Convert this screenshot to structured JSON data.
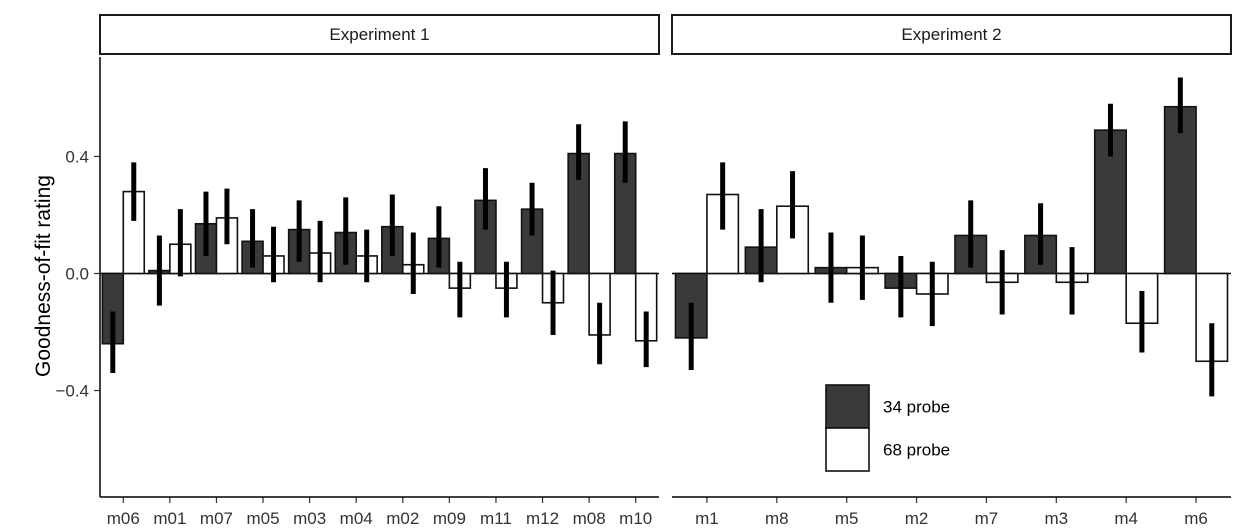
{
  "chart_data": {
    "type": "bar",
    "ylabel": "Goodness-of-fit rating",
    "ylim": [
      -0.74,
      0.74
    ],
    "yticks": [
      -0.4,
      0.0,
      0.4
    ],
    "ytick_labels": [
      "-0.4",
      "0.0",
      "0.4"
    ],
    "error_bars": true,
    "legend": {
      "placement": "inside-bottom-right",
      "entries": [
        {
          "name": "34 probe",
          "color": "#3a3a3a"
        },
        {
          "name": "68 probe",
          "color": "#ffffff"
        }
      ]
    },
    "panels": [
      {
        "title": "Experiment 1",
        "categories": [
          "m06",
          "m01",
          "m07",
          "m05",
          "m03",
          "m04",
          "m02",
          "m09",
          "m11",
          "m12",
          "m08",
          "m10"
        ],
        "series": [
          {
            "name": "34 probe",
            "values": [
              -0.24,
              0.01,
              0.17,
              0.11,
              0.15,
              0.14,
              0.16,
              0.12,
              0.25,
              0.22,
              0.41,
              0.41
            ],
            "err": [
              [
                -0.34,
                -0.13
              ],
              [
                -0.11,
                0.13
              ],
              [
                0.06,
                0.28
              ],
              [
                0.02,
                0.22
              ],
              [
                0.04,
                0.25
              ],
              [
                0.03,
                0.26
              ],
              [
                0.06,
                0.27
              ],
              [
                0.02,
                0.23
              ],
              [
                0.15,
                0.36
              ],
              [
                0.13,
                0.31
              ],
              [
                0.32,
                0.51
              ],
              [
                0.31,
                0.52
              ]
            ]
          },
          {
            "name": "68 probe",
            "values": [
              0.28,
              0.1,
              0.19,
              0.06,
              0.07,
              0.06,
              0.03,
              -0.05,
              -0.05,
              -0.1,
              -0.21,
              -0.23
            ],
            "err": [
              [
                0.18,
                0.38
              ],
              [
                -0.01,
                0.22
              ],
              [
                0.1,
                0.29
              ],
              [
                -0.03,
                0.16
              ],
              [
                -0.03,
                0.18
              ],
              [
                -0.03,
                0.15
              ],
              [
                -0.07,
                0.14
              ],
              [
                -0.15,
                0.04
              ],
              [
                -0.15,
                0.04
              ],
              [
                -0.21,
                0.01
              ],
              [
                -0.31,
                -0.1
              ],
              [
                -0.32,
                -0.13
              ]
            ]
          }
        ]
      },
      {
        "title": "Experiment 2",
        "categories": [
          "m1",
          "m8",
          "m5",
          "m2",
          "m7",
          "m3",
          "m4",
          "m6"
        ],
        "series": [
          {
            "name": "34 probe",
            "values": [
              -0.22,
              0.09,
              0.02,
              -0.05,
              0.13,
              0.13,
              0.49,
              0.57
            ],
            "err": [
              [
                -0.33,
                -0.1
              ],
              [
                -0.03,
                0.22
              ],
              [
                -0.1,
                0.14
              ],
              [
                -0.15,
                0.06
              ],
              [
                0.02,
                0.25
              ],
              [
                0.03,
                0.24
              ],
              [
                0.4,
                0.58
              ],
              [
                0.48,
                0.67
              ]
            ]
          },
          {
            "name": "68 probe",
            "values": [
              0.27,
              0.23,
              0.02,
              -0.07,
              -0.03,
              -0.03,
              -0.17,
              -0.3
            ],
            "err": [
              [
                0.15,
                0.38
              ],
              [
                0.12,
                0.35
              ],
              [
                -0.09,
                0.13
              ],
              [
                -0.18,
                0.04
              ],
              [
                -0.14,
                0.08
              ],
              [
                -0.14,
                0.09
              ],
              [
                -0.27,
                -0.06
              ],
              [
                -0.42,
                -0.17
              ]
            ]
          }
        ]
      }
    ]
  }
}
